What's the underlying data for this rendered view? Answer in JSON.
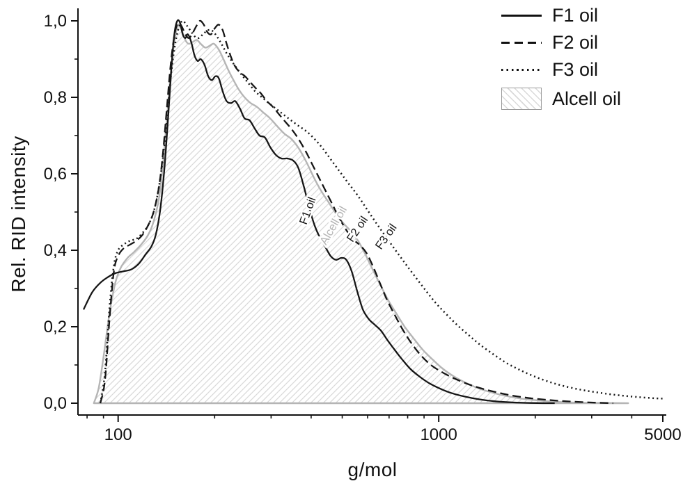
{
  "figure": {
    "background": "#ffffff"
  },
  "chart_data": {
    "type": "line",
    "title": "",
    "xlabel": "g/mol",
    "ylabel": "Rel. RID intensity",
    "x_scale": "log",
    "xlim": [
      78,
      5000
    ],
    "ylim": [
      0,
      1.0
    ],
    "grid": false,
    "legend_position": "top-right",
    "x_major_ticks": [
      {
        "value": 100,
        "label": "100"
      },
      {
        "value": 1000,
        "label": "1000"
      },
      {
        "value": 5000,
        "label": "5000"
      }
    ],
    "x_minor_ticks": [
      80,
      90,
      200,
      300,
      400,
      500,
      600,
      700,
      800,
      900,
      2000,
      3000,
      4000
    ],
    "y_major_ticks": [
      {
        "value": 0.0,
        "label": "0,0"
      },
      {
        "value": 0.2,
        "label": "0,2"
      },
      {
        "value": 0.4,
        "label": "0,4"
      },
      {
        "value": 0.6,
        "label": "0,6"
      },
      {
        "value": 0.8,
        "label": "0,8"
      },
      {
        "value": 1.0,
        "label": "1,0"
      }
    ],
    "y_minor_ticks": [
      0.1,
      0.3,
      0.5,
      0.7,
      0.9
    ],
    "colors": {
      "line_black": "#161616",
      "line_gray": "#b5b5b5",
      "hatch": "#d9d9d9"
    },
    "legend": {
      "items": [
        {
          "label": "F1 oil",
          "style": "solid"
        },
        {
          "label": "F2 oil",
          "style": "dashed"
        },
        {
          "label": "F3 oil",
          "style": "dotted"
        },
        {
          "label": "Alcell oil",
          "style": "hatch"
        }
      ]
    },
    "annotations": [
      {
        "text": "F1 oil",
        "x": 400,
        "y": 0.5,
        "rotate": -70,
        "color": "#161616"
      },
      {
        "text": "Alcell oil",
        "x": 480,
        "y": 0.46,
        "rotate": -60,
        "color": "#b5b5b5"
      },
      {
        "text": "F2 oil",
        "x": 570,
        "y": 0.45,
        "rotate": -56,
        "color": "#161616"
      },
      {
        "text": "F3 oil",
        "x": 700,
        "y": 0.43,
        "rotate": -55,
        "color": "#161616"
      }
    ],
    "series": [
      {
        "name": "F1 oil",
        "style": "solid",
        "color": "#161616",
        "points": [
          [
            78,
            0.245
          ],
          [
            83,
            0.29
          ],
          [
            88,
            0.315
          ],
          [
            93,
            0.33
          ],
          [
            98,
            0.34
          ],
          [
            104,
            0.345
          ],
          [
            110,
            0.35
          ],
          [
            116,
            0.365
          ],
          [
            122,
            0.39
          ],
          [
            127,
            0.41
          ],
          [
            131,
            0.44
          ],
          [
            135,
            0.5
          ],
          [
            139,
            0.6
          ],
          [
            143,
            0.74
          ],
          [
            147,
            0.89
          ],
          [
            150,
            0.97
          ],
          [
            153,
            1.0
          ],
          [
            156,
            0.995
          ],
          [
            159,
            0.965
          ],
          [
            162,
            0.955
          ],
          [
            165,
            0.965
          ],
          [
            169,
            0.945
          ],
          [
            173,
            0.91
          ],
          [
            177,
            0.895
          ],
          [
            181,
            0.9
          ],
          [
            186,
            0.885
          ],
          [
            191,
            0.855
          ],
          [
            196,
            0.845
          ],
          [
            201,
            0.855
          ],
          [
            206,
            0.85
          ],
          [
            212,
            0.815
          ],
          [
            218,
            0.79
          ],
          [
            225,
            0.785
          ],
          [
            232,
            0.79
          ],
          [
            240,
            0.77
          ],
          [
            248,
            0.745
          ],
          [
            257,
            0.74
          ],
          [
            266,
            0.72
          ],
          [
            276,
            0.7
          ],
          [
            287,
            0.695
          ],
          [
            298,
            0.67
          ],
          [
            310,
            0.65
          ],
          [
            323,
            0.64
          ],
          [
            337,
            0.64
          ],
          [
            351,
            0.635
          ],
          [
            365,
            0.615
          ],
          [
            380,
            0.565
          ],
          [
            395,
            0.51
          ],
          [
            410,
            0.465
          ],
          [
            425,
            0.435
          ],
          [
            442,
            0.41
          ],
          [
            460,
            0.385
          ],
          [
            478,
            0.375
          ],
          [
            497,
            0.38
          ],
          [
            515,
            0.375
          ],
          [
            535,
            0.345
          ],
          [
            558,
            0.29
          ],
          [
            580,
            0.245
          ],
          [
            605,
            0.22
          ],
          [
            632,
            0.205
          ],
          [
            660,
            0.19
          ],
          [
            692,
            0.165
          ],
          [
            728,
            0.14
          ],
          [
            768,
            0.115
          ],
          [
            815,
            0.09
          ],
          [
            870,
            0.07
          ],
          [
            935,
            0.052
          ],
          [
            1010,
            0.038
          ],
          [
            1100,
            0.026
          ],
          [
            1210,
            0.017
          ],
          [
            1340,
            0.01
          ],
          [
            1500,
            0.005
          ],
          [
            1700,
            0.002
          ],
          [
            1950,
            0.0005
          ],
          [
            2300,
            0.0
          ]
        ]
      },
      {
        "name": "F2 oil",
        "style": "dashed",
        "color": "#161616",
        "points": [
          [
            88,
            0.0
          ],
          [
            91,
            0.06
          ],
          [
            94,
            0.22
          ],
          [
            97,
            0.345
          ],
          [
            100,
            0.385
          ],
          [
            104,
            0.405
          ],
          [
            109,
            0.415
          ],
          [
            114,
            0.425
          ],
          [
            119,
            0.44
          ],
          [
            124,
            0.465
          ],
          [
            129,
            0.5
          ],
          [
            134,
            0.565
          ],
          [
            138,
            0.655
          ],
          [
            142,
            0.775
          ],
          [
            146,
            0.89
          ],
          [
            150,
            0.965
          ],
          [
            154,
            0.995
          ],
          [
            158,
            0.985
          ],
          [
            162,
            0.965
          ],
          [
            166,
            0.955
          ],
          [
            170,
            0.965
          ],
          [
            175,
            0.985
          ],
          [
            180,
            1.0
          ],
          [
            185,
            0.99
          ],
          [
            190,
            0.97
          ],
          [
            195,
            0.965
          ],
          [
            200,
            0.98
          ],
          [
            206,
            0.99
          ],
          [
            212,
            0.975
          ],
          [
            218,
            0.94
          ],
          [
            225,
            0.905
          ],
          [
            232,
            0.88
          ],
          [
            240,
            0.865
          ],
          [
            249,
            0.855
          ],
          [
            258,
            0.84
          ],
          [
            268,
            0.825
          ],
          [
            279,
            0.81
          ],
          [
            291,
            0.79
          ],
          [
            304,
            0.775
          ],
          [
            318,
            0.755
          ],
          [
            333,
            0.735
          ],
          [
            349,
            0.715
          ],
          [
            366,
            0.69
          ],
          [
            384,
            0.66
          ],
          [
            403,
            0.625
          ],
          [
            423,
            0.59
          ],
          [
            444,
            0.555
          ],
          [
            466,
            0.52
          ],
          [
            489,
            0.485
          ],
          [
            513,
            0.455
          ],
          [
            538,
            0.43
          ],
          [
            565,
            0.415
          ],
          [
            593,
            0.395
          ],
          [
            622,
            0.36
          ],
          [
            655,
            0.315
          ],
          [
            690,
            0.27
          ],
          [
            730,
            0.23
          ],
          [
            775,
            0.19
          ],
          [
            825,
            0.155
          ],
          [
            880,
            0.125
          ],
          [
            945,
            0.1
          ],
          [
            1020,
            0.082
          ],
          [
            1110,
            0.066
          ],
          [
            1215,
            0.052
          ],
          [
            1340,
            0.04
          ],
          [
            1490,
            0.03
          ],
          [
            1670,
            0.021
          ],
          [
            1890,
            0.014
          ],
          [
            2160,
            0.009
          ],
          [
            2500,
            0.005
          ],
          [
            2950,
            0.002
          ],
          [
            3500,
            0.0
          ]
        ]
      },
      {
        "name": "F3 oil",
        "style": "dotted",
        "color": "#161616",
        "points": [
          [
            88,
            0.0
          ],
          [
            91,
            0.08
          ],
          [
            94,
            0.25
          ],
          [
            97,
            0.36
          ],
          [
            100,
            0.4
          ],
          [
            104,
            0.415
          ],
          [
            109,
            0.425
          ],
          [
            114,
            0.43
          ],
          [
            119,
            0.445
          ],
          [
            124,
            0.465
          ],
          [
            129,
            0.5
          ],
          [
            134,
            0.565
          ],
          [
            139,
            0.665
          ],
          [
            143,
            0.775
          ],
          [
            147,
            0.875
          ],
          [
            151,
            0.945
          ],
          [
            155,
            0.985
          ],
          [
            159,
            1.0
          ],
          [
            163,
            0.99
          ],
          [
            168,
            0.975
          ],
          [
            173,
            0.96
          ],
          [
            178,
            0.955
          ],
          [
            184,
            0.965
          ],
          [
            190,
            0.975
          ],
          [
            196,
            0.975
          ],
          [
            203,
            0.96
          ],
          [
            210,
            0.94
          ],
          [
            218,
            0.915
          ],
          [
            226,
            0.895
          ],
          [
            235,
            0.875
          ],
          [
            245,
            0.855
          ],
          [
            256,
            0.835
          ],
          [
            268,
            0.815
          ],
          [
            281,
            0.8
          ],
          [
            295,
            0.785
          ],
          [
            311,
            0.77
          ],
          [
            328,
            0.755
          ],
          [
            346,
            0.74
          ],
          [
            366,
            0.725
          ],
          [
            388,
            0.71
          ],
          [
            411,
            0.69
          ],
          [
            436,
            0.665
          ],
          [
            463,
            0.635
          ],
          [
            492,
            0.605
          ],
          [
            523,
            0.575
          ],
          [
            557,
            0.545
          ],
          [
            594,
            0.51
          ],
          [
            634,
            0.475
          ],
          [
            678,
            0.44
          ],
          [
            726,
            0.405
          ],
          [
            779,
            0.37
          ],
          [
            837,
            0.335
          ],
          [
            901,
            0.3
          ],
          [
            972,
            0.265
          ],
          [
            1050,
            0.235
          ],
          [
            1140,
            0.205
          ],
          [
            1240,
            0.178
          ],
          [
            1350,
            0.152
          ],
          [
            1480,
            0.128
          ],
          [
            1620,
            0.106
          ],
          [
            1780,
            0.088
          ],
          [
            1960,
            0.072
          ],
          [
            2170,
            0.058
          ],
          [
            2400,
            0.047
          ],
          [
            2670,
            0.038
          ],
          [
            2970,
            0.031
          ],
          [
            3320,
            0.025
          ],
          [
            3720,
            0.02
          ],
          [
            4180,
            0.016
          ],
          [
            4700,
            0.013
          ],
          [
            5000,
            0.012
          ]
        ]
      },
      {
        "name": "Alcell oil",
        "style": "solid",
        "color": "#b5b5b5",
        "fill": "hatch",
        "points": [
          [
            84,
            0.0
          ],
          [
            87,
            0.04
          ],
          [
            90,
            0.12
          ],
          [
            94,
            0.235
          ],
          [
            98,
            0.315
          ],
          [
            102,
            0.355
          ],
          [
            107,
            0.38
          ],
          [
            112,
            0.395
          ],
          [
            118,
            0.415
          ],
          [
            124,
            0.44
          ],
          [
            129,
            0.475
          ],
          [
            134,
            0.535
          ],
          [
            138,
            0.625
          ],
          [
            142,
            0.745
          ],
          [
            146,
            0.865
          ],
          [
            150,
            0.95
          ],
          [
            154,
            0.99
          ],
          [
            158,
            0.975
          ],
          [
            162,
            0.95
          ],
          [
            166,
            0.94
          ],
          [
            171,
            0.945
          ],
          [
            176,
            0.95
          ],
          [
            181,
            0.94
          ],
          [
            187,
            0.93
          ],
          [
            193,
            0.935
          ],
          [
            199,
            0.94
          ],
          [
            206,
            0.925
          ],
          [
            213,
            0.9
          ],
          [
            221,
            0.87
          ],
          [
            229,
            0.845
          ],
          [
            238,
            0.82
          ],
          [
            248,
            0.8
          ],
          [
            259,
            0.785
          ],
          [
            271,
            0.775
          ],
          [
            284,
            0.76
          ],
          [
            298,
            0.745
          ],
          [
            313,
            0.725
          ],
          [
            330,
            0.705
          ],
          [
            348,
            0.69
          ],
          [
            367,
            0.665
          ],
          [
            387,
            0.63
          ],
          [
            408,
            0.59
          ],
          [
            430,
            0.555
          ],
          [
            454,
            0.525
          ],
          [
            479,
            0.495
          ],
          [
            505,
            0.47
          ],
          [
            532,
            0.45
          ],
          [
            560,
            0.425
          ],
          [
            590,
            0.39
          ],
          [
            622,
            0.35
          ],
          [
            657,
            0.31
          ],
          [
            695,
            0.27
          ],
          [
            737,
            0.235
          ],
          [
            783,
            0.2
          ],
          [
            834,
            0.17
          ],
          [
            891,
            0.14
          ],
          [
            955,
            0.115
          ],
          [
            1030,
            0.09
          ],
          [
            1115,
            0.07
          ],
          [
            1210,
            0.054
          ],
          [
            1320,
            0.04
          ],
          [
            1450,
            0.029
          ],
          [
            1600,
            0.02
          ],
          [
            1780,
            0.013
          ],
          [
            2000,
            0.008
          ],
          [
            2270,
            0.004
          ],
          [
            2600,
            0.002
          ],
          [
            3000,
            0.001
          ],
          [
            3900,
            0.0
          ]
        ]
      }
    ]
  }
}
